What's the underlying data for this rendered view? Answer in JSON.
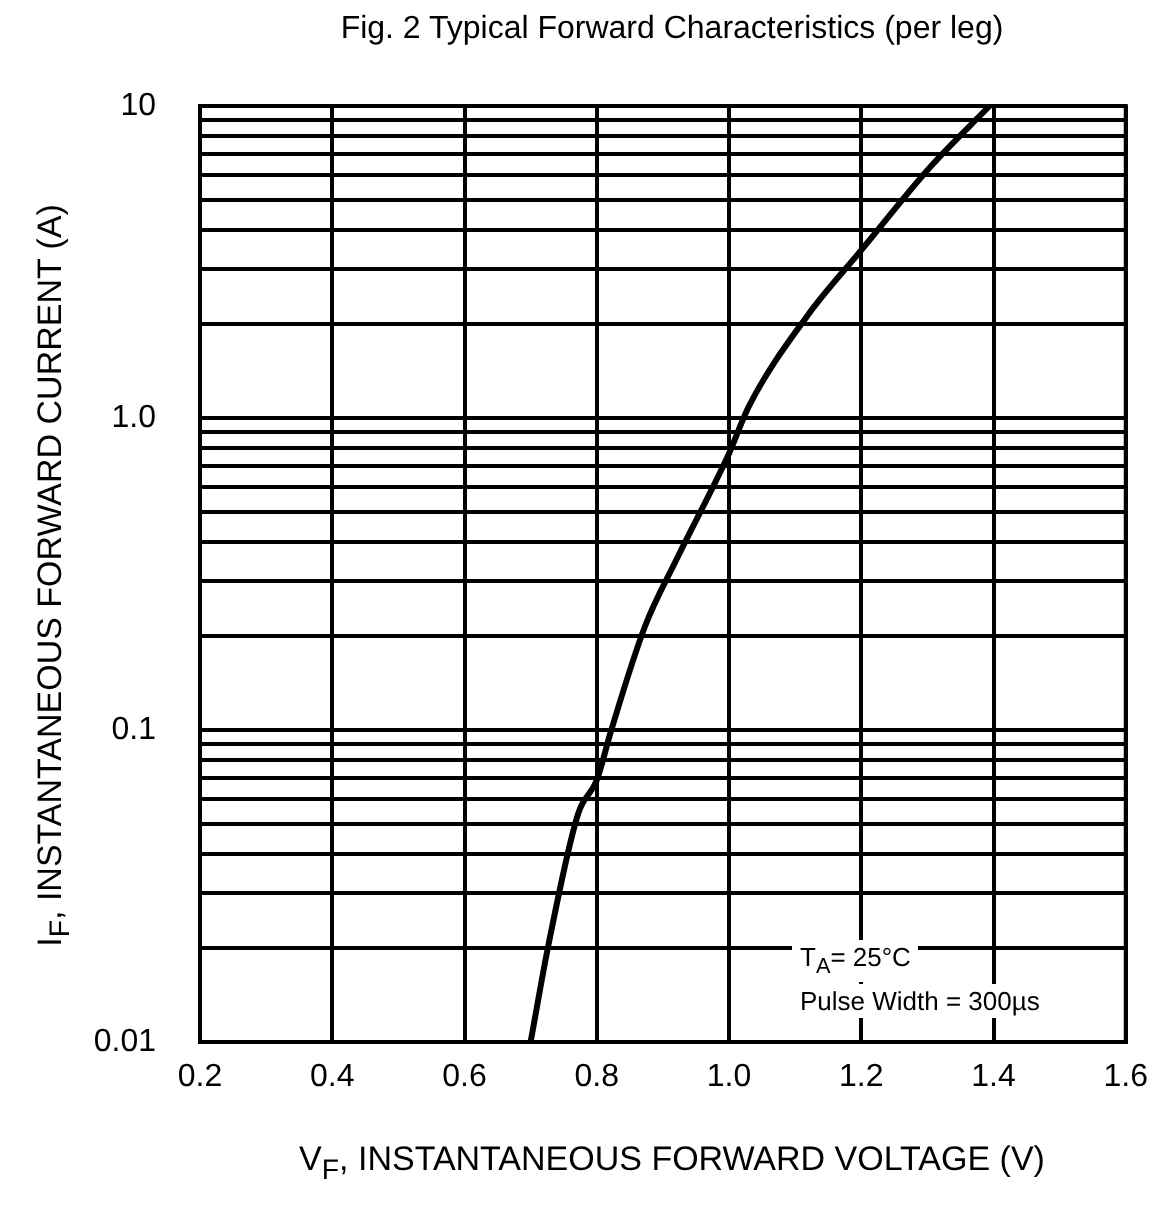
{
  "chart_data": {
    "type": "line",
    "title": "Fig. 2 Typical Forward Characteristics (per leg)",
    "xlabel": "V$_{F}$, INSTANTANEOUS FORWARD VOLTAGE (V)",
    "ylabel": "I$_{F}$, INSTANTANEOUS FORWARD CURRENT (A)",
    "annotations": [
      "T$_{A}$= 25°C",
      "Pulse Width = 300µs"
    ],
    "series": [
      {
        "color": "#000000",
        "x": [
          0.7,
          0.727,
          0.772,
          0.8,
          0.822,
          0.873,
          0.92,
          1.0,
          1.03,
          1.118,
          1.2,
          1.305,
          1.394
        ],
        "values": [
          0.01,
          0.0205,
          0.054,
          0.069,
          0.1,
          0.215,
          0.35,
          0.77,
          1.09,
          2.12,
          3.45,
          6.4,
          10
        ]
      }
    ],
    "log": "y",
    "grid": true,
    "legend": false,
    "marker": "none",
    "line_style": "solid",
    "xlim": [
      0.2,
      1.6
    ],
    "xticks": [
      0.2,
      0.4,
      0.6,
      0.8,
      {
        "value": 1,
        "label": "1.0"
      },
      1.2,
      1.4,
      1.6
    ],
    "ylim": [
      0.01,
      10
    ],
    "yticks": [
      0.01,
      {
        "value": 0.02,
        "label": null
      },
      {
        "value": 0.03,
        "label": null
      },
      {
        "value": 0.04,
        "label": null
      },
      {
        "value": 0.05,
        "label": null
      },
      {
        "value": 0.06,
        "label": null
      },
      {
        "value": 0.07,
        "label": null
      },
      {
        "value": 0.08,
        "label": null
      },
      {
        "value": 0.09,
        "label": null
      },
      0.1,
      {
        "value": 0.2,
        "label": null
      },
      {
        "value": 0.3,
        "label": null
      },
      {
        "value": 0.4,
        "label": null
      },
      {
        "value": 0.5,
        "label": null
      },
      {
        "value": 0.6,
        "label": null
      },
      {
        "value": 0.7,
        "label": null
      },
      {
        "value": 0.8,
        "label": null
      },
      {
        "value": 0.9,
        "label": null
      },
      {
        "value": 1,
        "label": "1.0"
      },
      {
        "value": 2,
        "label": null
      },
      {
        "value": 3,
        "label": null
      },
      {
        "value": 4,
        "label": null
      },
      {
        "value": 5,
        "label": null
      },
      {
        "value": 6,
        "label": null
      },
      {
        "value": 7,
        "label": null
      },
      {
        "value": 8,
        "label": null
      },
      {
        "value": 9,
        "label": null
      },
      10
    ]
  }
}
